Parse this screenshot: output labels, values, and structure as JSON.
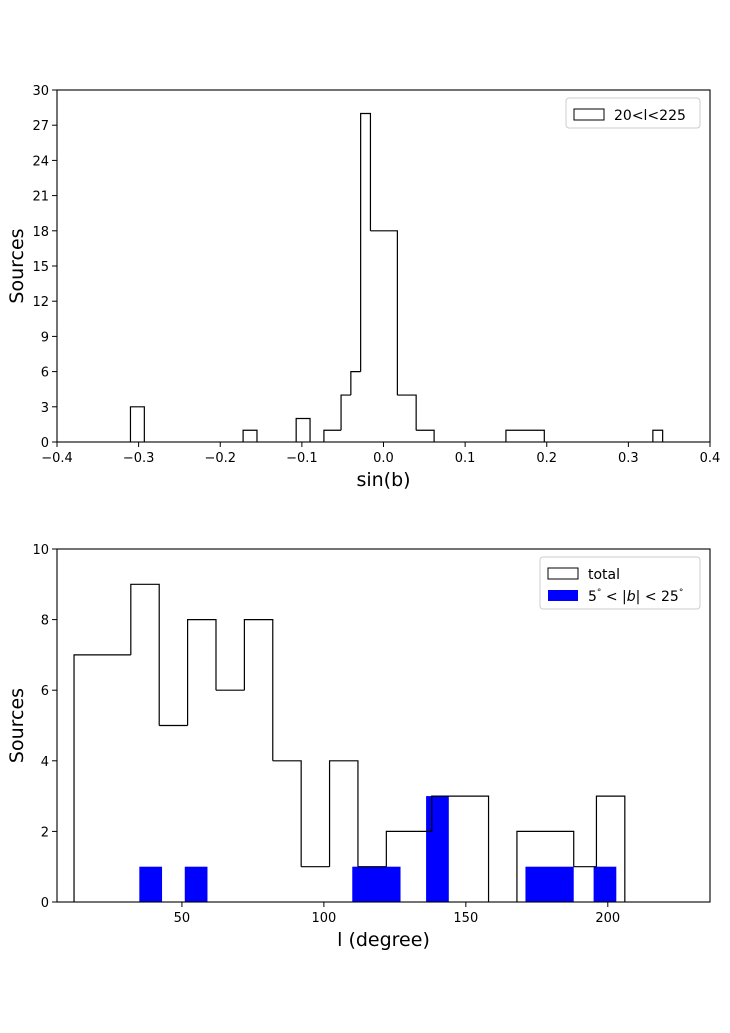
{
  "chart_data": [
    {
      "type": "histogram",
      "xlabel": "sin(b)",
      "ylabel": "Sources",
      "xlim": [
        -0.4,
        0.4
      ],
      "ylim": [
        0,
        30
      ],
      "xticks": [
        -0.4,
        -0.3,
        -0.2,
        -0.1,
        0.0,
        0.1,
        0.2,
        0.3,
        0.4
      ],
      "xtick_labels": [
        "−0.4",
        "−0.3",
        "−0.2",
        "−0.1",
        "0.0",
        "0.1",
        "0.2",
        "0.3",
        "0.4"
      ],
      "yticks": [
        0,
        3,
        6,
        9,
        12,
        15,
        18,
        21,
        24,
        27,
        30
      ],
      "ytick_labels": [
        "0",
        "3",
        "6",
        "9",
        "12",
        "15",
        "18",
        "21",
        "24",
        "27",
        "30"
      ],
      "legend_position": "top-right",
      "grid": false,
      "series": [
        {
          "name": "20<l<225",
          "style": "step",
          "color": "#000000",
          "bins": [
            {
              "x0": -0.31,
              "x1": -0.293,
              "count": 3
            },
            {
              "x0": -0.293,
              "x1": -0.172,
              "count": 0
            },
            {
              "x0": -0.172,
              "x1": -0.155,
              "count": 1
            },
            {
              "x0": -0.155,
              "x1": -0.107,
              "count": 0
            },
            {
              "x0": -0.107,
              "x1": -0.09,
              "count": 2
            },
            {
              "x0": -0.09,
              "x1": -0.073,
              "count": 0
            },
            {
              "x0": -0.073,
              "x1": -0.052,
              "count": 1
            },
            {
              "x0": -0.052,
              "x1": -0.04,
              "count": 4
            },
            {
              "x0": -0.04,
              "x1": -0.028,
              "count": 6
            },
            {
              "x0": -0.028,
              "x1": -0.016,
              "count": 28
            },
            {
              "x0": -0.016,
              "x1": 0.017,
              "count": 18
            },
            {
              "x0": 0.017,
              "x1": 0.04,
              "count": 4
            },
            {
              "x0": 0.04,
              "x1": 0.062,
              "count": 1
            },
            {
              "x0": 0.062,
              "x1": 0.15,
              "count": 0
            },
            {
              "x0": 0.15,
              "x1": 0.197,
              "count": 1
            },
            {
              "x0": 0.197,
              "x1": 0.33,
              "count": 0
            },
            {
              "x0": 0.33,
              "x1": 0.342,
              "count": 1
            }
          ]
        }
      ]
    },
    {
      "type": "histogram",
      "xlabel": "l (degree)",
      "ylabel": "Sources",
      "xlim": [
        6,
        236
      ],
      "ylim": [
        0,
        10
      ],
      "xticks": [
        50,
        100,
        150,
        200
      ],
      "xtick_labels": [
        "50",
        "100",
        "150",
        "200"
      ],
      "yticks": [
        0,
        2,
        4,
        6,
        8,
        10
      ],
      "ytick_labels": [
        "0",
        "2",
        "4",
        "6",
        "8",
        "10"
      ],
      "legend_position": "top-right",
      "grid": false,
      "series": [
        {
          "name": "total",
          "style": "step",
          "color": "#000000",
          "bins": [
            {
              "x0": 12,
              "x1": 32,
              "count": 7
            },
            {
              "x0": 32,
              "x1": 42,
              "count": 9
            },
            {
              "x0": 42,
              "x1": 52,
              "count": 5
            },
            {
              "x0": 52,
              "x1": 62,
              "count": 8
            },
            {
              "x0": 62,
              "x1": 72,
              "count": 6
            },
            {
              "x0": 72,
              "x1": 82,
              "count": 8
            },
            {
              "x0": 82,
              "x1": 92,
              "count": 4
            },
            {
              "x0": 92,
              "x1": 102,
              "count": 1
            },
            {
              "x0": 102,
              "x1": 112,
              "count": 4
            },
            {
              "x0": 112,
              "x1": 122,
              "count": 1
            },
            {
              "x0": 122,
              "x1": 138,
              "count": 2
            },
            {
              "x0": 138,
              "x1": 158,
              "count": 3
            },
            {
              "x0": 158,
              "x1": 168,
              "count": 0
            },
            {
              "x0": 168,
              "x1": 188,
              "count": 2
            },
            {
              "x0": 188,
              "x1": 196,
              "count": 1
            },
            {
              "x0": 196,
              "x1": 206,
              "count": 3
            }
          ]
        },
        {
          "name": "5° < |b| < 25°",
          "name_parts": [
            "5",
            "°",
            " < |",
            "b",
            "| < 25",
            "°"
          ],
          "style": "filled",
          "color": "#0000ff",
          "bins": [
            {
              "x0": 35,
              "x1": 43,
              "count": 1
            },
            {
              "x0": 51,
              "x1": 59,
              "count": 1
            },
            {
              "x0": 59,
              "x1": 110,
              "count": 0
            },
            {
              "x0": 110,
              "x1": 127,
              "count": 1
            },
            {
              "x0": 136,
              "x1": 144,
              "count": 3
            },
            {
              "x0": 171,
              "x1": 188,
              "count": 1
            },
            {
              "x0": 195,
              "x1": 203,
              "count": 1
            }
          ]
        }
      ]
    }
  ]
}
